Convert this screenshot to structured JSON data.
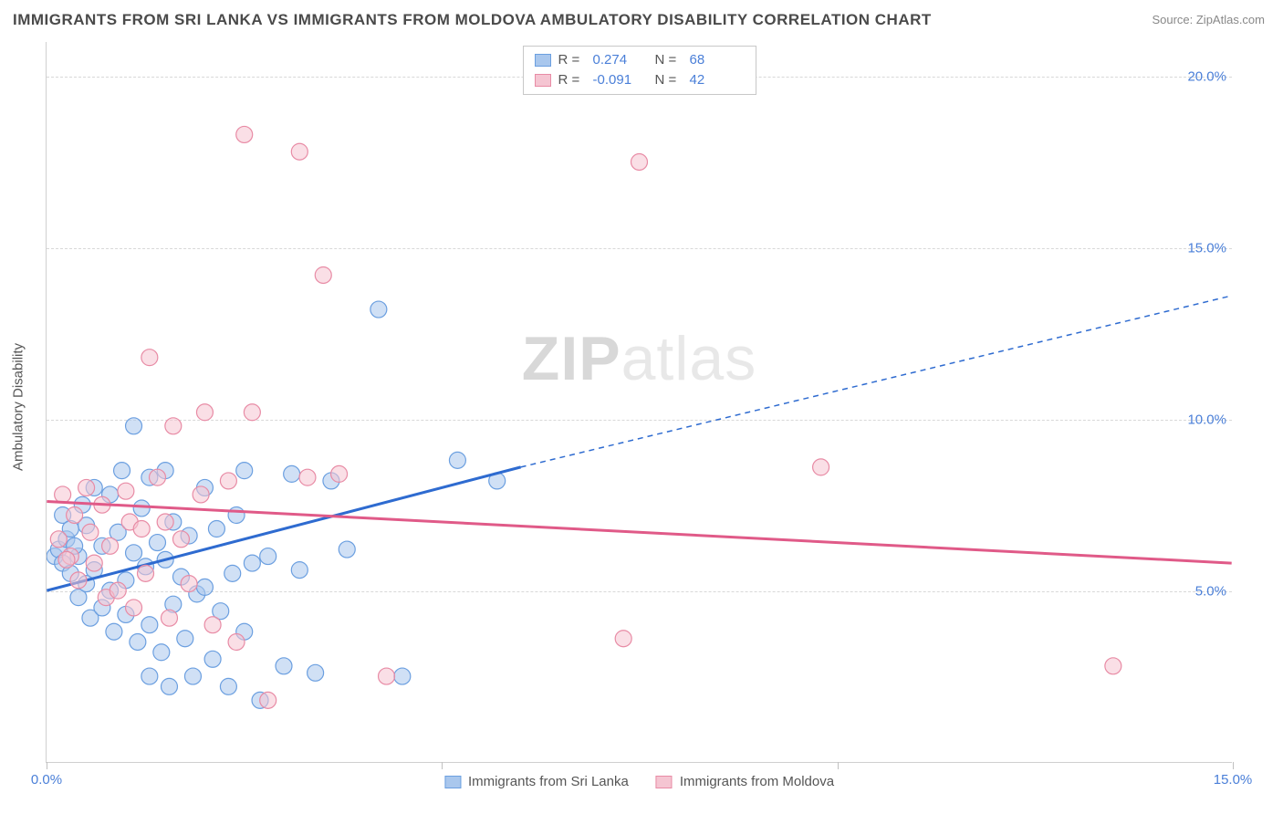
{
  "title": "IMMIGRANTS FROM SRI LANKA VS IMMIGRANTS FROM MOLDOVA AMBULATORY DISABILITY CORRELATION CHART",
  "source_prefix": "Source: ",
  "source_name": "ZipAtlas.com",
  "ylabel": "Ambulatory Disability",
  "watermark_zip": "ZIP",
  "watermark_atlas": "atlas",
  "chart": {
    "type": "scatter",
    "xlim": [
      0,
      15
    ],
    "ylim": [
      0,
      21
    ],
    "xticks": [
      0,
      5,
      10,
      15
    ],
    "xtick_labels": [
      "0.0%",
      "",
      "",
      "15.0%"
    ],
    "yticks": [
      5,
      10,
      15,
      20
    ],
    "ytick_labels": [
      "5.0%",
      "10.0%",
      "15.0%",
      "20.0%"
    ],
    "background_color": "#ffffff",
    "grid_color": "#d8d8d8",
    "marker_radius": 9,
    "marker_opacity": 0.55,
    "series": [
      {
        "name": "Immigrants from Sri Lanka",
        "color_fill": "#a9c7ed",
        "color_stroke": "#6b9fe0",
        "trend_color": "#2e6bd0",
        "trend_width": 3,
        "R": "0.274",
        "N": "68",
        "trend_solid": {
          "x1": 0,
          "y1": 5.0,
          "x2": 6.0,
          "y2": 8.6
        },
        "trend_dashed": {
          "x1": 6.0,
          "y1": 8.6,
          "x2": 15.0,
          "y2": 13.6
        },
        "points": [
          [
            0.1,
            6.0
          ],
          [
            0.15,
            6.2
          ],
          [
            0.2,
            5.8
          ],
          [
            0.2,
            7.2
          ],
          [
            0.25,
            6.5
          ],
          [
            0.3,
            5.5
          ],
          [
            0.3,
            6.8
          ],
          [
            0.4,
            6.0
          ],
          [
            0.4,
            4.8
          ],
          [
            0.45,
            7.5
          ],
          [
            0.5,
            5.2
          ],
          [
            0.5,
            6.9
          ],
          [
            0.55,
            4.2
          ],
          [
            0.6,
            8.0
          ],
          [
            0.6,
            5.6
          ],
          [
            0.7,
            6.3
          ],
          [
            0.7,
            4.5
          ],
          [
            0.8,
            7.8
          ],
          [
            0.8,
            5.0
          ],
          [
            0.85,
            3.8
          ],
          [
            0.9,
            6.7
          ],
          [
            0.95,
            8.5
          ],
          [
            1.0,
            5.3
          ],
          [
            1.0,
            4.3
          ],
          [
            1.1,
            9.8
          ],
          [
            1.1,
            6.1
          ],
          [
            1.15,
            3.5
          ],
          [
            1.2,
            7.4
          ],
          [
            1.25,
            5.7
          ],
          [
            1.3,
            4.0
          ],
          [
            1.3,
            8.3
          ],
          [
            1.4,
            6.4
          ],
          [
            1.45,
            3.2
          ],
          [
            1.5,
            5.9
          ],
          [
            1.5,
            8.5
          ],
          [
            1.6,
            4.6
          ],
          [
            1.6,
            7.0
          ],
          [
            1.7,
            5.4
          ],
          [
            1.75,
            3.6
          ],
          [
            1.8,
            6.6
          ],
          [
            1.85,
            2.5
          ],
          [
            1.9,
            4.9
          ],
          [
            2.0,
            8.0
          ],
          [
            2.0,
            5.1
          ],
          [
            2.1,
            3.0
          ],
          [
            2.15,
            6.8
          ],
          [
            2.2,
            4.4
          ],
          [
            2.3,
            2.2
          ],
          [
            2.35,
            5.5
          ],
          [
            2.4,
            7.2
          ],
          [
            2.5,
            8.5
          ],
          [
            2.5,
            3.8
          ],
          [
            2.6,
            5.8
          ],
          [
            2.7,
            1.8
          ],
          [
            2.8,
            6.0
          ],
          [
            3.0,
            2.8
          ],
          [
            3.1,
            8.4
          ],
          [
            3.2,
            5.6
          ],
          [
            3.4,
            2.6
          ],
          [
            3.6,
            8.2
          ],
          [
            3.8,
            6.2
          ],
          [
            4.2,
            13.2
          ],
          [
            4.5,
            2.5
          ],
          [
            5.2,
            8.8
          ],
          [
            5.7,
            8.2
          ],
          [
            1.55,
            2.2
          ],
          [
            1.3,
            2.5
          ],
          [
            0.35,
            6.3
          ]
        ]
      },
      {
        "name": "Immigrants from Moldova",
        "color_fill": "#f5c5d2",
        "color_stroke": "#e88ba5",
        "trend_color": "#e05a88",
        "trend_width": 3,
        "R": "-0.091",
        "N": "42",
        "trend_solid": {
          "x1": 0,
          "y1": 7.6,
          "x2": 15.0,
          "y2": 5.8
        },
        "trend_dashed": null,
        "points": [
          [
            0.15,
            6.5
          ],
          [
            0.2,
            7.8
          ],
          [
            0.3,
            6.0
          ],
          [
            0.35,
            7.2
          ],
          [
            0.4,
            5.3
          ],
          [
            0.5,
            8.0
          ],
          [
            0.55,
            6.7
          ],
          [
            0.6,
            5.8
          ],
          [
            0.7,
            7.5
          ],
          [
            0.75,
            4.8
          ],
          [
            0.8,
            6.3
          ],
          [
            0.9,
            5.0
          ],
          [
            1.0,
            7.9
          ],
          [
            1.05,
            7.0
          ],
          [
            1.1,
            4.5
          ],
          [
            1.2,
            6.8
          ],
          [
            1.25,
            5.5
          ],
          [
            1.3,
            11.8
          ],
          [
            1.4,
            8.3
          ],
          [
            1.5,
            7.0
          ],
          [
            1.55,
            4.2
          ],
          [
            1.6,
            9.8
          ],
          [
            1.7,
            6.5
          ],
          [
            1.8,
            5.2
          ],
          [
            1.95,
            7.8
          ],
          [
            2.0,
            10.2
          ],
          [
            2.1,
            4.0
          ],
          [
            2.3,
            8.2
          ],
          [
            2.4,
            3.5
          ],
          [
            2.5,
            18.3
          ],
          [
            2.6,
            10.2
          ],
          [
            2.8,
            1.8
          ],
          [
            3.2,
            17.8
          ],
          [
            3.3,
            8.3
          ],
          [
            3.5,
            14.2
          ],
          [
            3.7,
            8.4
          ],
          [
            4.3,
            2.5
          ],
          [
            7.3,
            3.6
          ],
          [
            7.5,
            17.5
          ],
          [
            9.8,
            8.6
          ],
          [
            13.5,
            2.8
          ],
          [
            0.25,
            5.9
          ]
        ]
      }
    ]
  },
  "legend_top": {
    "r_label": "R =",
    "n_label": "N ="
  }
}
